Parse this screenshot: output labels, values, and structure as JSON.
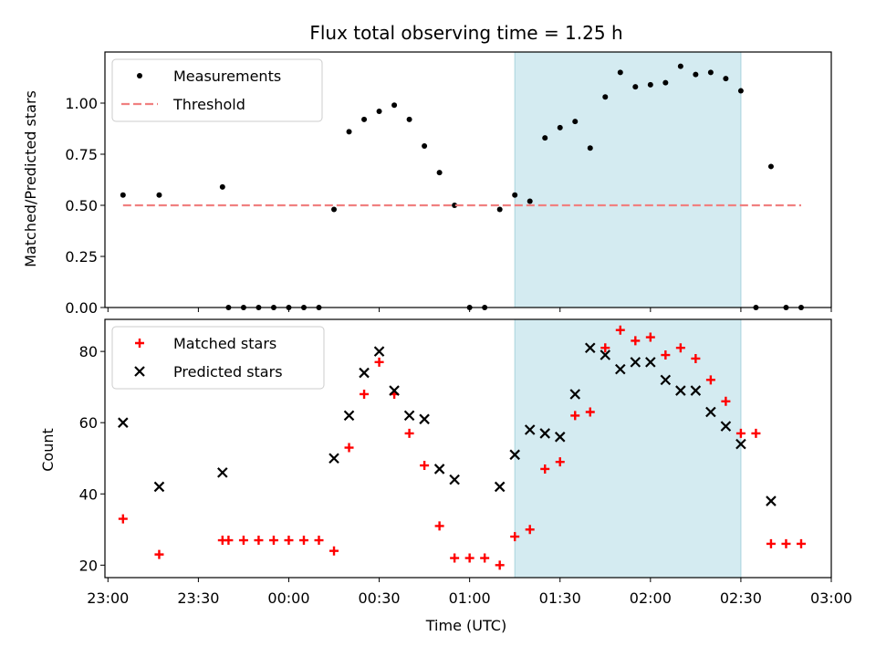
{
  "chart_data": [
    {
      "type": "scatter",
      "title": "Flux total observing time = 1.25 h",
      "ylabel": "Matched/Predicted stars",
      "xlabel": "",
      "xlim": [
        "22:59",
        "03:00"
      ],
      "ylim": [
        0,
        1.25
      ],
      "yticks": [
        "0.00",
        "0.25",
        "0.50",
        "0.75",
        "1.00"
      ],
      "legend_position": "top-left",
      "shaded_region": {
        "start": "01:15",
        "end": "02:30",
        "color": "#d4ebf1"
      },
      "series": [
        {
          "name": "Measurements",
          "color": "#000000",
          "marker": "dot",
          "points": [
            [
              "23:05",
              0.55
            ],
            [
              "23:17",
              0.55
            ],
            [
              "23:38",
              0.59
            ],
            [
              "23:40",
              0.0
            ],
            [
              "23:45",
              0.0
            ],
            [
              "23:50",
              0.0
            ],
            [
              "23:55",
              0.0
            ],
            [
              "00:00",
              0.0
            ],
            [
              "00:05",
              0.0
            ],
            [
              "00:10",
              0.0
            ],
            [
              "00:15",
              0.48
            ],
            [
              "00:20",
              0.86
            ],
            [
              "00:25",
              0.92
            ],
            [
              "00:30",
              0.96
            ],
            [
              "00:35",
              0.99
            ],
            [
              "00:40",
              0.92
            ],
            [
              "00:45",
              0.79
            ],
            [
              "00:50",
              0.66
            ],
            [
              "00:55",
              0.5
            ],
            [
              "01:00",
              0.0
            ],
            [
              "01:05",
              0.0
            ],
            [
              "01:10",
              0.48
            ],
            [
              "01:15",
              0.55
            ],
            [
              "01:20",
              0.52
            ],
            [
              "01:25",
              0.83
            ],
            [
              "01:30",
              0.88
            ],
            [
              "01:35",
              0.91
            ],
            [
              "01:40",
              0.78
            ],
            [
              "01:45",
              1.03
            ],
            [
              "01:50",
              1.15
            ],
            [
              "01:55",
              1.08
            ],
            [
              "02:00",
              1.09
            ],
            [
              "02:05",
              1.1
            ],
            [
              "02:10",
              1.18
            ],
            [
              "02:15",
              1.14
            ],
            [
              "02:20",
              1.15
            ],
            [
              "02:25",
              1.12
            ],
            [
              "02:30",
              1.06
            ],
            [
              "02:35",
              0.0
            ],
            [
              "02:40",
              0.69
            ],
            [
              "02:45",
              0.0
            ],
            [
              "02:50",
              0.0
            ]
          ]
        },
        {
          "name": "Threshold",
          "color": "#f08080",
          "line_style": "dashed",
          "points": [
            [
              "23:05",
              0.5
            ],
            [
              "02:50",
              0.5
            ]
          ]
        }
      ]
    },
    {
      "type": "scatter",
      "title": "",
      "ylabel": "Count",
      "xlabel": "Time (UTC)",
      "xlim": [
        "22:59",
        "03:00"
      ],
      "ylim": [
        16.5,
        89
      ],
      "yticks": [
        "20",
        "40",
        "60",
        "80"
      ],
      "xticks": [
        "23:00",
        "23:30",
        "00:00",
        "00:30",
        "01:00",
        "01:30",
        "02:00",
        "02:30",
        "03:00"
      ],
      "legend_position": "top-left",
      "shaded_region": {
        "start": "01:15",
        "end": "02:30",
        "color": "#d4ebf1"
      },
      "series": [
        {
          "name": "Matched stars",
          "color": "#ff0000",
          "marker": "plus",
          "points": [
            [
              "23:05",
              33
            ],
            [
              "23:17",
              23
            ],
            [
              "23:38",
              27
            ],
            [
              "23:40",
              27
            ],
            [
              "23:45",
              27
            ],
            [
              "23:50",
              27
            ],
            [
              "23:55",
              27
            ],
            [
              "00:00",
              27
            ],
            [
              "00:05",
              27
            ],
            [
              "00:10",
              27
            ],
            [
              "00:15",
              24
            ],
            [
              "00:20",
              53
            ],
            [
              "00:25",
              68
            ],
            [
              "00:30",
              77
            ],
            [
              "00:35",
              68
            ],
            [
              "00:40",
              57
            ],
            [
              "00:45",
              48
            ],
            [
              "00:50",
              31
            ],
            [
              "00:55",
              22
            ],
            [
              "01:00",
              22
            ],
            [
              "01:05",
              22
            ],
            [
              "01:10",
              20
            ],
            [
              "01:15",
              28
            ],
            [
              "01:20",
              30
            ],
            [
              "01:25",
              47
            ],
            [
              "01:30",
              49
            ],
            [
              "01:35",
              62
            ],
            [
              "01:40",
              63
            ],
            [
              "01:45",
              81
            ],
            [
              "01:50",
              86
            ],
            [
              "01:55",
              83
            ],
            [
              "02:00",
              84
            ],
            [
              "02:05",
              79
            ],
            [
              "02:10",
              81
            ],
            [
              "02:15",
              78
            ],
            [
              "02:20",
              72
            ],
            [
              "02:25",
              66
            ],
            [
              "02:30",
              57
            ],
            [
              "02:35",
              57
            ],
            [
              "02:40",
              26
            ],
            [
              "02:45",
              26
            ],
            [
              "02:50",
              26
            ]
          ]
        },
        {
          "name": "Predicted stars",
          "color": "#000000",
          "marker": "x",
          "points": [
            [
              "23:05",
              60
            ],
            [
              "23:17",
              42
            ],
            [
              "23:38",
              46
            ],
            [
              "00:15",
              50
            ],
            [
              "00:20",
              62
            ],
            [
              "00:25",
              74
            ],
            [
              "00:30",
              80
            ],
            [
              "00:35",
              69
            ],
            [
              "00:40",
              62
            ],
            [
              "00:45",
              61
            ],
            [
              "00:50",
              47
            ],
            [
              "00:55",
              44
            ],
            [
              "01:10",
              42
            ],
            [
              "01:15",
              51
            ],
            [
              "01:20",
              58
            ],
            [
              "01:25",
              57
            ],
            [
              "01:30",
              56
            ],
            [
              "01:35",
              68
            ],
            [
              "01:40",
              81
            ],
            [
              "01:45",
              79
            ],
            [
              "01:50",
              75
            ],
            [
              "01:55",
              77
            ],
            [
              "02:00",
              77
            ],
            [
              "02:05",
              72
            ],
            [
              "02:10",
              69
            ],
            [
              "02:15",
              69
            ],
            [
              "02:20",
              63
            ],
            [
              "02:25",
              59
            ],
            [
              "02:30",
              54
            ],
            [
              "02:40",
              38
            ]
          ]
        }
      ]
    }
  ]
}
